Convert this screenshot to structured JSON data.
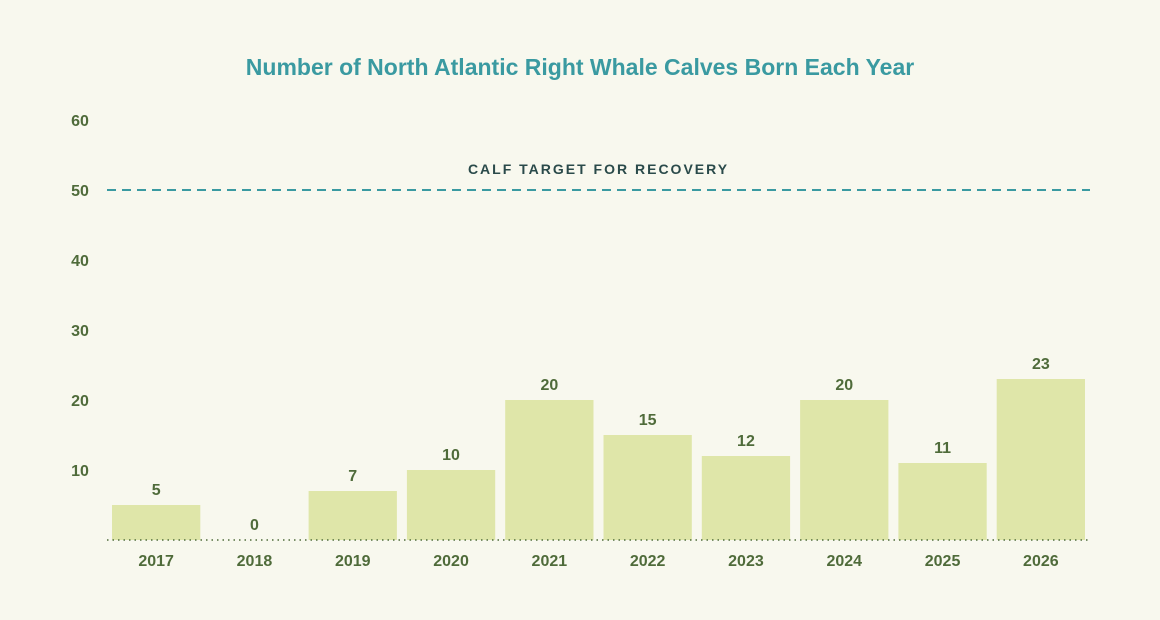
{
  "chart_data": {
    "type": "bar",
    "title": "Number of North Atlantic Right Whale Calves Born Each Year",
    "categories": [
      "2017",
      "2018",
      "2019",
      "2020",
      "2021",
      "2022",
      "2023",
      "2024",
      "2025",
      "2026"
    ],
    "values": [
      5,
      0,
      7,
      10,
      20,
      15,
      12,
      20,
      11,
      23
    ],
    "ylim": [
      0,
      60
    ],
    "yticks": [
      10,
      20,
      30,
      40,
      50,
      60
    ],
    "grid": false,
    "reference_line": {
      "value": 50,
      "label": "CALF TARGET FOR RECOVERY",
      "style": "dashed"
    },
    "colors": {
      "bar": "#dfe6a9",
      "title": "#3a9aa1",
      "reference_line": "#3a9aa1",
      "text": "#4f6b3a",
      "background": "#f8f8ee"
    }
  }
}
